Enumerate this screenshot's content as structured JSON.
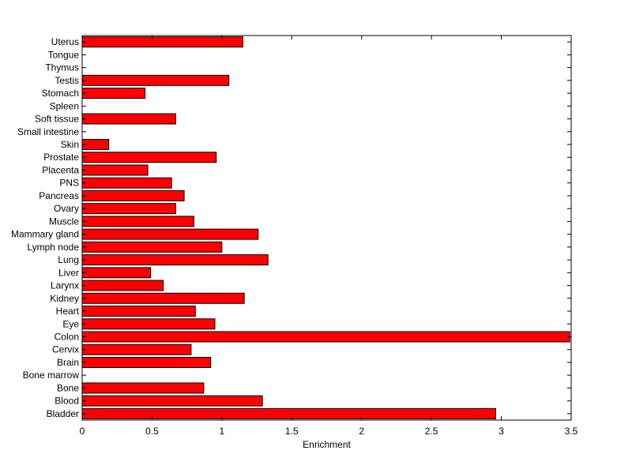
{
  "chart_data": {
    "type": "bar",
    "orientation": "horizontal",
    "xlabel": "Enrichment",
    "ylabel": "",
    "xlim": [
      0,
      3.5
    ],
    "xticks": [
      "0",
      "0.5",
      "1",
      "1.5",
      "2",
      "2.5",
      "3",
      "3.5"
    ],
    "grid": false,
    "bar_color": "#ff0000",
    "categories": [
      "Uterus",
      "Tongue",
      "Thymus",
      "Testis",
      "Stomach",
      "Spleen",
      "Soft tissue",
      "Small intestine",
      "Skin",
      "Prostate",
      "Placenta",
      "PNS",
      "Pancreas",
      "Ovary",
      "Muscle",
      "Mammary gland",
      "Lymph node",
      "Lung",
      "Liver",
      "Larynx",
      "Kidney",
      "Heart",
      "Eye",
      "Colon",
      "Cervix",
      "Brain",
      "Bone marrow",
      "Bone",
      "Blood",
      "Bladder"
    ],
    "values": [
      1.15,
      0,
      0,
      1.05,
      0.45,
      0,
      0.67,
      0,
      0.19,
      0.96,
      0.47,
      0.64,
      0.73,
      0.67,
      0.8,
      1.26,
      1.0,
      1.33,
      0.49,
      0.58,
      1.16,
      0.81,
      0.95,
      3.49,
      0.78,
      0.92,
      0,
      0.87,
      1.29,
      2.96
    ]
  }
}
